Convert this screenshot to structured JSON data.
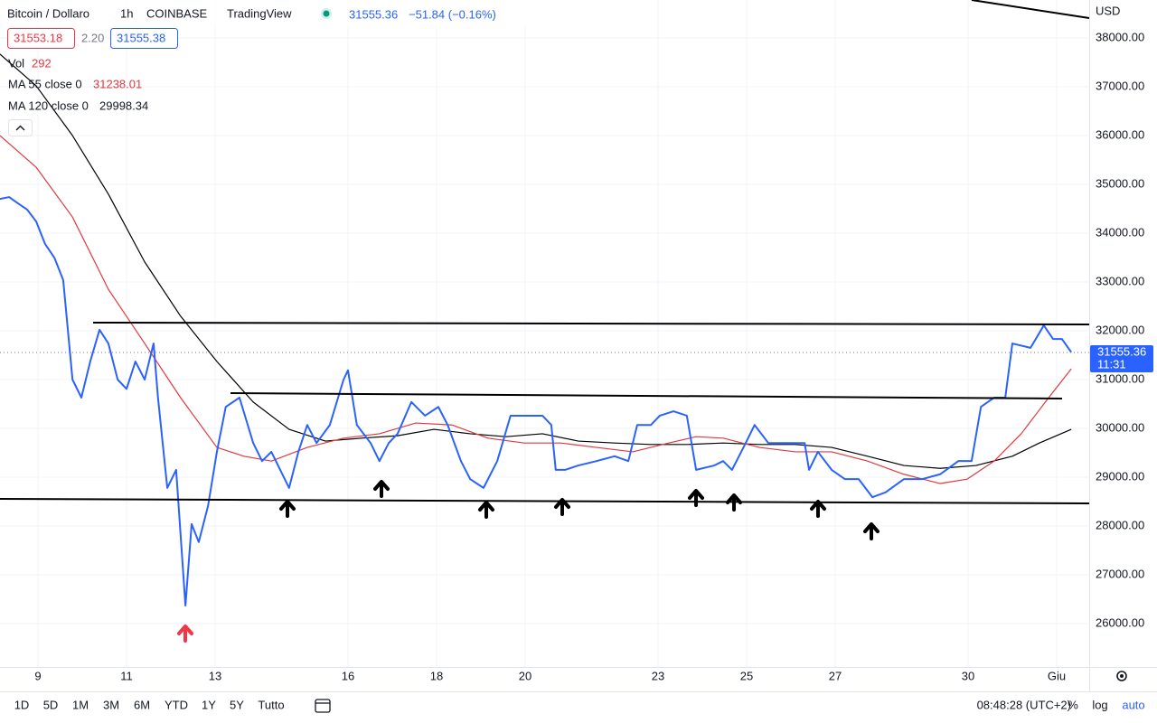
{
  "header": {
    "symbol": "Bitcoin / Dollaro",
    "interval": "1h",
    "exchange": "COINBASE",
    "source": "TradingView",
    "last": "31555.36",
    "change": "−51.84 (−0.16%)",
    "bid": "31553.18",
    "spread": "2.20",
    "ask": "31555.38"
  },
  "indicators": [
    {
      "name": "Vol",
      "value": "292"
    },
    {
      "name": "MA 55 close 0",
      "value": "31238.01"
    },
    {
      "name": "MA 120 close 0",
      "value": "29998.34"
    }
  ],
  "currency": "USD",
  "price_tag": {
    "price": "31555.36",
    "countdown": "11:31"
  },
  "chart_data": {
    "type": "line",
    "xlim": [
      8.143,
      32.735
    ],
    "ylim": [
      25111,
      38778
    ],
    "xticks": [
      9,
      11,
      13,
      16,
      18,
      20,
      23,
      25,
      27,
      30,
      {
        "value": 32,
        "label": "Giu"
      }
    ],
    "yticks": [
      {
        "value": 26000,
        "label": "26000.00"
      },
      {
        "value": 27000,
        "label": "27000.00"
      },
      {
        "value": 28000,
        "label": "28000.00"
      },
      {
        "value": 29000,
        "label": "29000.00"
      },
      {
        "value": 30000,
        "label": "30000.00"
      },
      {
        "value": 31000,
        "label": "31000.00"
      },
      {
        "value": 32000,
        "label": "32000.00"
      },
      {
        "value": 33000,
        "label": "33000.00"
      },
      {
        "value": 34000,
        "label": "34000.00"
      },
      {
        "value": 35000,
        "label": "35000.00"
      },
      {
        "value": 36000,
        "label": "36000.00"
      },
      {
        "value": 37000,
        "label": "37000.00"
      },
      {
        "value": 38000,
        "label": "38000.00"
      }
    ],
    "grid": true,
    "series": [
      {
        "color": "#2962ff",
        "x": [
          8.14,
          8.35,
          8.55,
          8.76,
          8.96,
          9.16,
          9.37,
          9.57,
          9.78,
          9.98,
          10.18,
          10.39,
          10.59,
          10.8,
          11.0,
          11.2,
          11.41,
          11.61,
          11.71,
          11.92,
          12.12,
          12.33,
          12.47,
          12.63,
          12.84,
          13.04,
          13.24,
          13.55,
          13.86,
          14.06,
          14.27,
          14.47,
          14.67,
          14.88,
          15.08,
          15.29,
          15.59,
          15.9,
          16.0,
          16.2,
          16.51,
          16.71,
          16.92,
          17.12,
          17.43,
          17.74,
          18.04,
          18.25,
          18.55,
          18.76,
          19.06,
          19.37,
          19.67,
          19.98,
          20.39,
          20.59,
          20.69,
          20.9,
          21.2,
          21.61,
          22.02,
          22.33,
          22.53,
          22.84,
          23.04,
          23.35,
          23.65,
          23.86,
          24.27,
          24.47,
          24.67,
          24.98,
          25.18,
          25.49,
          25.9,
          26.31,
          26.41,
          26.61,
          26.92,
          27.22,
          27.53,
          27.84,
          28.14,
          28.55,
          28.96,
          29.37,
          29.78,
          30.08,
          30.29,
          30.59,
          30.84,
          31.0,
          31.41,
          31.71,
          31.92,
          32.12,
          32.33
        ],
        "values": [
          34700,
          34740,
          34610,
          34480,
          34240,
          33780,
          33500,
          33040,
          31000,
          30630,
          31370,
          32020,
          31740,
          31000,
          30810,
          31370,
          31000,
          31740,
          30630,
          28780,
          29150,
          26370,
          28040,
          27670,
          28410,
          29520,
          30440,
          30630,
          29700,
          29330,
          29520,
          29150,
          28780,
          29520,
          30070,
          29700,
          30070,
          31000,
          31190,
          30070,
          29700,
          29330,
          29700,
          29890,
          30540,
          30260,
          30440,
          30070,
          29330,
          28960,
          28780,
          29330,
          30260,
          30260,
          30260,
          30070,
          29150,
          29150,
          29240,
          29330,
          29430,
          29330,
          30070,
          30070,
          30260,
          30350,
          30260,
          29150,
          29240,
          29330,
          29150,
          29700,
          30070,
          29700,
          29700,
          29700,
          29150,
          29520,
          29150,
          28960,
          28960,
          28590,
          28690,
          28960,
          28960,
          29060,
          29330,
          29330,
          30440,
          30630,
          30630,
          31740,
          31650,
          32110,
          31830,
          31830,
          31560
        ]
      },
      {
        "color": "#e0393e",
        "x": [
          8.14,
          8.96,
          9.78,
          10.59,
          11.41,
          12.22,
          13.04,
          13.65,
          14.27,
          15.08,
          15.9,
          16.71,
          17.53,
          18.35,
          19.16,
          19.98,
          20.8,
          21.61,
          22.43,
          23.24,
          23.86,
          24.47,
          25.29,
          26.1,
          26.92,
          27.73,
          28.55,
          29.37,
          29.98,
          30.59,
          31.2,
          31.82,
          32.33
        ],
        "values": [
          36000,
          35350,
          34330,
          32850,
          31740,
          30630,
          29610,
          29430,
          29330,
          29610,
          29800,
          29890,
          30110,
          30070,
          29800,
          29700,
          29700,
          29610,
          29520,
          29700,
          29830,
          29800,
          29610,
          29520,
          29520,
          29330,
          29060,
          28870,
          28960,
          29330,
          29890,
          30630,
          31220
        ]
      },
      {
        "color": "#000000",
        "x": [
          8.14,
          8.96,
          9.78,
          10.59,
          11.41,
          12.22,
          13.04,
          13.86,
          14.67,
          15.49,
          16.31,
          17.12,
          17.94,
          18.76,
          19.57,
          20.39,
          21.2,
          22.02,
          22.84,
          23.65,
          24.47,
          25.29,
          26.1,
          26.92,
          27.73,
          28.55,
          29.37,
          30.18,
          31.0,
          31.61,
          32.33
        ],
        "values": [
          37670,
          37020,
          36000,
          34800,
          33410,
          32300,
          31370,
          30540,
          29980,
          29740,
          29800,
          29850,
          29980,
          29890,
          29830,
          29890,
          29740,
          29700,
          29670,
          29670,
          29700,
          29670,
          29670,
          29610,
          29430,
          29240,
          29180,
          29240,
          29430,
          29700,
          29980
        ]
      }
    ]
  },
  "toolbar": {
    "ranges": [
      "1D",
      "5D",
      "1M",
      "3M",
      "6M",
      "YTD",
      "1Y",
      "5Y",
      "Tutto"
    ],
    "time": "08:48:28 (UTC+2)",
    "options": [
      "%",
      "log",
      "auto"
    ]
  }
}
